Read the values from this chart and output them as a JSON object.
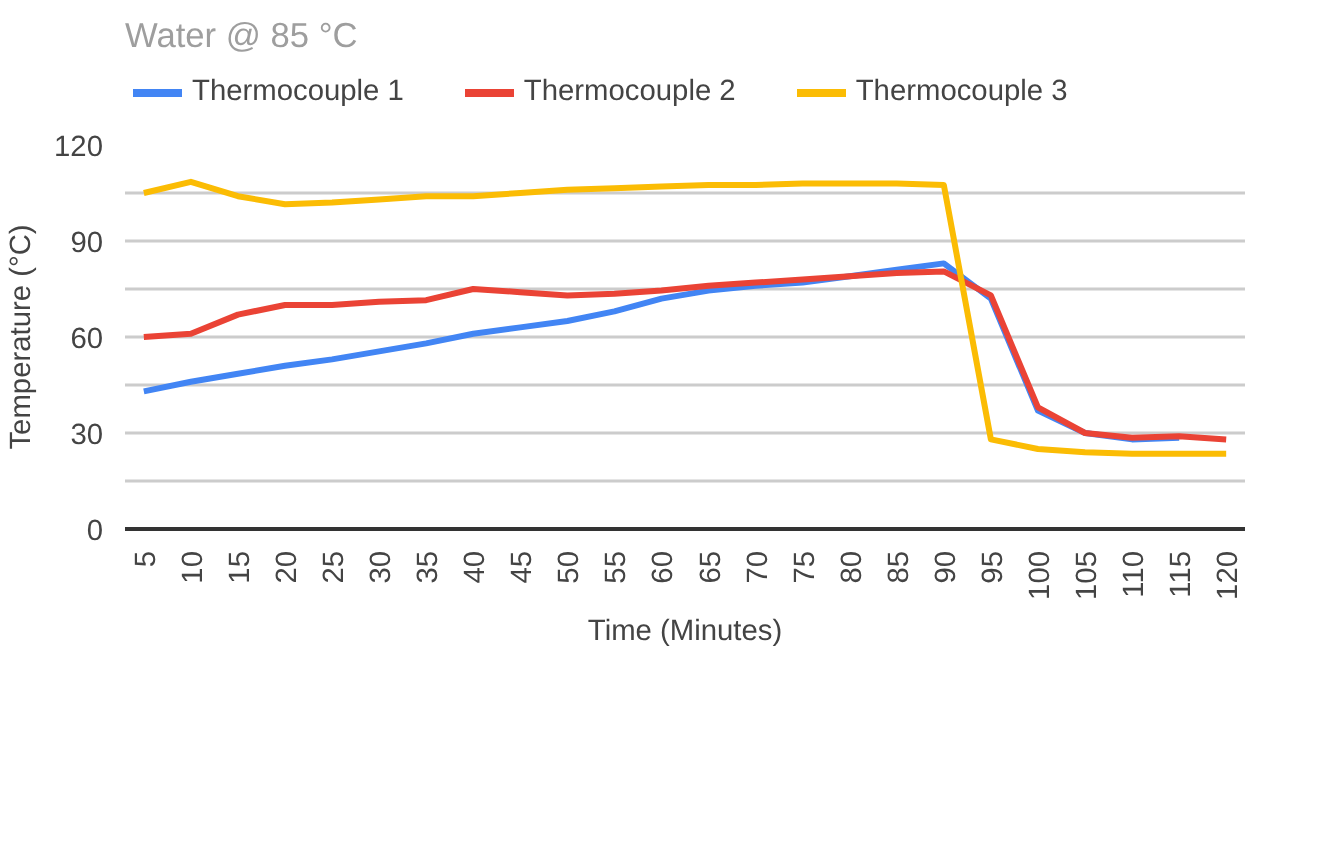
{
  "chart_data": {
    "type": "line",
    "title": "Water @ 85 °C",
    "xlabel": "Time (Minutes)",
    "ylabel": "Temperature (°C)",
    "categories": [
      "5",
      "10",
      "15",
      "20",
      "25",
      "30",
      "35",
      "40",
      "45",
      "50",
      "55",
      "60",
      "65",
      "70",
      "75",
      "80",
      "85",
      "90",
      "95",
      "100",
      "105",
      "110",
      "115",
      "120"
    ],
    "series": [
      {
        "name": "Thermocouple 1",
        "color": "#4285f4",
        "values": [
          43,
          46,
          48.5,
          51,
          53,
          55.5,
          58,
          61,
          63,
          65,
          68,
          72,
          74.5,
          76,
          77,
          79,
          81,
          83,
          72,
          37,
          30,
          28,
          28.5,
          null
        ]
      },
      {
        "name": "Thermocouple 2",
        "color": "#ea4335",
        "values": [
          60,
          61,
          67,
          70,
          70,
          71,
          71.5,
          75,
          74,
          73,
          73.5,
          74.5,
          76,
          77,
          78,
          79,
          80,
          80.5,
          73,
          38,
          30,
          28.5,
          29,
          28
        ]
      },
      {
        "name": "Thermocouple 3",
        "color": "#fbbc04",
        "values": [
          105,
          108.5,
          104,
          101.5,
          102,
          103,
          104,
          104,
          105,
          106,
          106.5,
          107,
          107.5,
          107.5,
          108,
          108,
          108,
          107.5,
          28,
          25,
          24,
          23.5,
          23.5,
          23.5
        ]
      }
    ],
    "ylim": [
      0,
      120
    ],
    "yticks": [
      0,
      {
        "value": 15,
        "label": null
      },
      30,
      {
        "value": 45,
        "label": null
      },
      60,
      {
        "value": 75,
        "label": null
      },
      90,
      {
        "value": 105,
        "label": null
      },
      120
    ],
    "grid": "y",
    "legend": "top left",
    "marker": "none",
    "line_style": "solid"
  }
}
